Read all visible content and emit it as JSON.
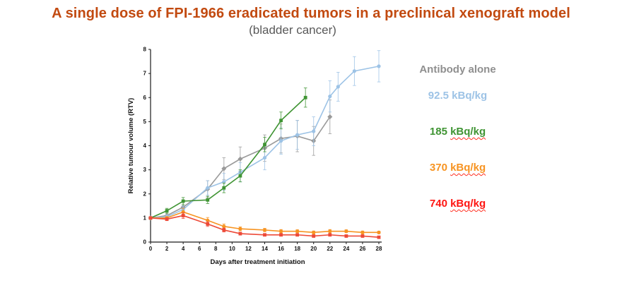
{
  "title": "A single dose of FPI-1966 eradicated tumors in a preclinical xenograft model",
  "subtitle": "(bladder cancer)",
  "colors": {
    "title": "#c24a10",
    "subtitle": "#595959",
    "axis": "#1a1a1a"
  },
  "legend": [
    {
      "prefix": "Antibody alone",
      "unit": "",
      "color": "#8f8f8f",
      "wavy": false
    },
    {
      "prefix": "92.5 ",
      "unit": "kBq/kg",
      "color": "#9dc3e6",
      "wavy": false
    },
    {
      "prefix": "185 ",
      "unit": "kBq/kg",
      "color": "#3f9433",
      "wavy": true
    },
    {
      "prefix": "370 ",
      "unit": "kBq/kg",
      "color": "#f79422",
      "wavy": true
    },
    {
      "prefix": "740 ",
      "unit": "kBq/kg",
      "color": "#fe1511",
      "wavy": true
    }
  ],
  "chart_data": {
    "type": "line",
    "title": "",
    "xlabel": "Days after treatment initiation",
    "ylabel": "Relative tumour volume (RTV)",
    "xlim": [
      0,
      28
    ],
    "ylim": [
      0,
      8
    ],
    "xticks": [
      0,
      2,
      4,
      6,
      8,
      10,
      12,
      14,
      16,
      18,
      20,
      22,
      24,
      26,
      28
    ],
    "yticks": [
      0,
      1,
      2,
      3,
      4,
      5,
      6,
      7,
      8
    ],
    "grid": false,
    "legend_position": "right",
    "series": [
      {
        "name": "Antibody alone",
        "color": "#9a9a9a",
        "marker": "diamond",
        "x": [
          0,
          2,
          4,
          7,
          9,
          11,
          14,
          16,
          18,
          20,
          22
        ],
        "y": [
          1.0,
          1.1,
          1.45,
          2.2,
          3.05,
          3.45,
          3.9,
          4.3,
          4.4,
          4.2,
          5.2
        ],
        "err": [
          0.06,
          0.1,
          0.2,
          0.35,
          0.45,
          0.5,
          0.55,
          0.6,
          0.65,
          0.6,
          0.7
        ]
      },
      {
        "name": "92.5 kBq/kg",
        "color": "#9dc3e6",
        "marker": "circle",
        "x": [
          0,
          2,
          4,
          7,
          9,
          11,
          14,
          16,
          18,
          20,
          22,
          23,
          25,
          28
        ],
        "y": [
          1.0,
          1.05,
          1.35,
          2.25,
          2.5,
          2.9,
          3.5,
          4.2,
          4.45,
          4.6,
          6.05,
          6.45,
          7.1,
          7.3
        ],
        "err": [
          0.05,
          0.08,
          0.15,
          0.3,
          0.35,
          0.4,
          0.5,
          0.55,
          0.6,
          0.6,
          0.65,
          0.6,
          0.6,
          0.65
        ]
      },
      {
        "name": "185 kBq/kg",
        "color": "#3f9433",
        "marker": "square",
        "x": [
          0,
          2,
          4,
          7,
          9,
          11,
          14,
          16,
          19
        ],
        "y": [
          1.0,
          1.3,
          1.7,
          1.75,
          2.25,
          2.75,
          4.05,
          5.05,
          6.0
        ],
        "err": [
          0.05,
          0.1,
          0.15,
          0.15,
          0.2,
          0.25,
          0.3,
          0.35,
          0.4
        ]
      },
      {
        "name": "370 kBq/kg",
        "color": "#f79422",
        "marker": "circle",
        "x": [
          0,
          2,
          4,
          7,
          9,
          11,
          14,
          16,
          18,
          20,
          22,
          24,
          26,
          28
        ],
        "y": [
          1.0,
          1.0,
          1.25,
          0.9,
          0.65,
          0.55,
          0.5,
          0.45,
          0.45,
          0.4,
          0.45,
          0.45,
          0.4,
          0.4
        ],
        "err": [
          0.05,
          0.06,
          0.15,
          0.12,
          0.1,
          0.08,
          0.07,
          0.07,
          0.06,
          0.06,
          0.07,
          0.06,
          0.06,
          0.05
        ]
      },
      {
        "name": "740 kBq/kg",
        "color": "#ed4a38",
        "marker": "square",
        "x": [
          0,
          2,
          4,
          7,
          9,
          11,
          14,
          16,
          18,
          20,
          22,
          24,
          26,
          28
        ],
        "y": [
          1.0,
          0.95,
          1.1,
          0.75,
          0.5,
          0.35,
          0.3,
          0.3,
          0.3,
          0.25,
          0.3,
          0.25,
          0.25,
          0.2
        ],
        "err": [
          0.05,
          0.06,
          0.12,
          0.1,
          0.08,
          0.06,
          0.05,
          0.05,
          0.05,
          0.04,
          0.05,
          0.04,
          0.04,
          0.04
        ]
      }
    ]
  }
}
